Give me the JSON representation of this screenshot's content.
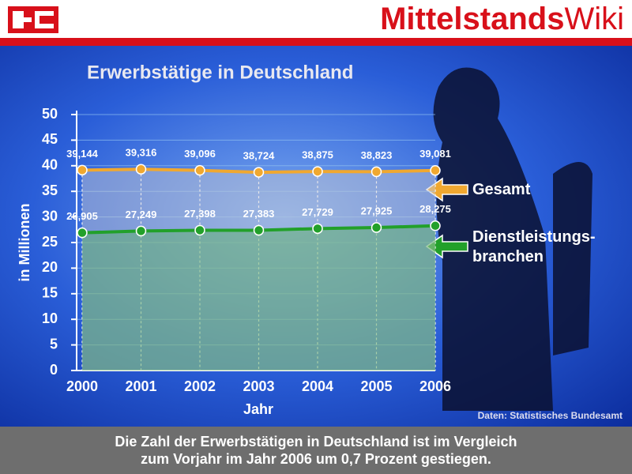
{
  "header": {
    "brand": [
      "Mittelstands",
      "Wiki"
    ]
  },
  "chart_data": {
    "type": "line",
    "title": "Erwerbstätige in Deutschland",
    "ylabel": "in Millionen",
    "xlabel": "Jahr",
    "categories": [
      "2000",
      "2001",
      "2002",
      "2003",
      "2004",
      "2005",
      "2006"
    ],
    "series": [
      {
        "name": "Gesamt",
        "color": "#f0a830",
        "area": "#c8c8d0",
        "values": [
          39.144,
          39.316,
          39.096,
          38.724,
          38.875,
          38.823,
          39.081
        ],
        "value_labels": [
          "39,144",
          "39,316",
          "39,096",
          "38,724",
          "38,875",
          "38,823",
          "39,081"
        ]
      },
      {
        "name": "Dienstleistungs-\nbranchen",
        "color": "#22a02a",
        "area": "#5ab45a",
        "values": [
          26.905,
          27.249,
          27.398,
          27.383,
          27.729,
          27.925,
          28.275
        ],
        "value_labels": [
          "26,905",
          "27,249",
          "27,398",
          "27,383",
          "27,729",
          "27,925",
          "28,275"
        ]
      }
    ],
    "ylim": [
      0,
      50
    ],
    "yticks": [
      0,
      5,
      10,
      15,
      20,
      25,
      30,
      35,
      40,
      45,
      50
    ],
    "grid": true,
    "source": "Daten: Statistisches Bundesamt"
  },
  "footer": {
    "caption": "Die Zahl der Erwerbstätigen in Deutschland ist im Vergleich\nzum Vorjahr im Jahr 2006 um 0,7 Prozent gestiegen."
  }
}
